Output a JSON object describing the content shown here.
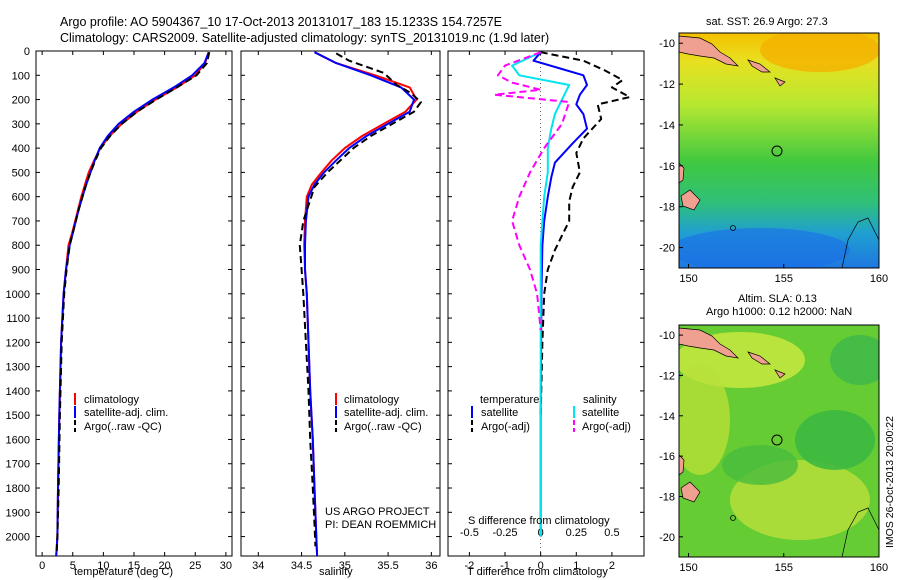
{
  "title_line1": "Argo profile: AO 5904367_10 17-Oct-2013 20131017_183 15.1233S 154.7257E",
  "title_line2": "Climatology: CARS2009. Satellite-adjusted climatology: synTS_20131019.nc (1.9d later)",
  "side_label": "IMOS 26-Oct-2013 20:00:22",
  "colors": {
    "climatology": "#ff0000",
    "satellite": "#0000ff",
    "argo": "#000000",
    "sal_satellite": "#00e5ee",
    "sal_argo": "#ff00ff"
  },
  "chart_data": [
    {
      "type": "line",
      "xlabel": "temperature (deg C)",
      "ylabel": "",
      "xlim": [
        -1,
        31
      ],
      "xticks": [
        0,
        5,
        10,
        15,
        20,
        25,
        30
      ],
      "ylim": [
        2080,
        0
      ],
      "yticks": [
        0,
        100,
        200,
        300,
        400,
        500,
        600,
        700,
        800,
        900,
        1000,
        1100,
        1200,
        1300,
        1400,
        1500,
        1600,
        1700,
        1800,
        1900,
        2000
      ],
      "legend": [
        "climatology",
        "satellite-adj. clim.",
        "Argo(..raw -QC)"
      ],
      "legend_placement": "lower-right",
      "series": [
        {
          "name": "climatology",
          "style": "solid",
          "x": [
            27.2,
            26.6,
            25.0,
            22.0,
            18.5,
            15.5,
            13.0,
            11.0,
            9.5,
            8.5,
            7.6,
            7.0,
            6.4,
            5.9,
            5.4,
            4.9,
            4.3,
            3.9,
            3.5,
            3.1,
            2.8,
            2.6,
            2.5,
            2.3
          ],
          "y": [
            5,
            50,
            100,
            150,
            200,
            250,
            300,
            350,
            400,
            450,
            500,
            550,
            600,
            650,
            700,
            750,
            800,
            900,
            1000,
            1200,
            1500,
            1800,
            2000,
            2080
          ]
        },
        {
          "name": "satellite-adj. clim.",
          "style": "solid",
          "x": [
            27.2,
            26.5,
            24.5,
            21.5,
            18.0,
            15.0,
            12.5,
            10.7,
            9.4,
            8.6,
            7.9,
            7.2,
            6.6,
            6.0,
            5.5,
            5.0,
            4.5,
            3.9,
            3.5,
            3.1,
            2.8,
            2.6,
            2.5,
            2.3
          ],
          "y": [
            5,
            50,
            100,
            150,
            200,
            250,
            300,
            350,
            400,
            450,
            500,
            550,
            600,
            650,
            700,
            750,
            800,
            900,
            1000,
            1200,
            1500,
            1800,
            2000,
            2080
          ]
        },
        {
          "name": "Argo(..raw -QC)",
          "style": "dashed",
          "x": [
            27.3,
            26.9,
            25.2,
            22.0,
            18.6,
            15.5,
            13.0,
            11.1,
            9.6,
            8.7,
            7.9,
            7.2,
            6.6,
            6.0,
            5.5,
            5.0,
            4.5,
            4.0,
            3.6,
            3.2,
            2.9,
            2.7,
            2.5,
            2.4
          ],
          "y": [
            5,
            50,
            100,
            150,
            200,
            250,
            300,
            350,
            400,
            450,
            500,
            550,
            600,
            650,
            700,
            750,
            800,
            900,
            1000,
            1200,
            1500,
            1800,
            2000,
            2060
          ]
        }
      ]
    },
    {
      "type": "line",
      "xlabel": "salinity",
      "ylabel": "",
      "xlim": [
        33.8,
        36.1
      ],
      "xticks": [
        34,
        34.5,
        35,
        35.5,
        36
      ],
      "ylim": [
        2080,
        0
      ],
      "legend": [
        "climatology",
        "satellite-adj. clim.",
        "Argo(..raw -QC)"
      ],
      "legend_placement": "lower-right",
      "annotations": [
        "US ARGO PROJECT",
        "PI: DEAN ROEMMICH"
      ],
      "series": [
        {
          "name": "climatology",
          "style": "solid",
          "x": [
            34.65,
            34.9,
            35.35,
            35.75,
            35.83,
            35.7,
            35.45,
            35.2,
            35.0,
            34.85,
            34.73,
            34.62,
            34.56,
            34.54,
            34.53,
            34.54,
            34.56,
            34.58,
            34.6,
            34.63,
            34.65,
            34.67,
            34.68
          ],
          "y": [
            5,
            50,
            100,
            150,
            200,
            250,
            300,
            350,
            400,
            450,
            500,
            550,
            600,
            700,
            800,
            900,
            1000,
            1200,
            1400,
            1600,
            1800,
            2000,
            2080
          ]
        },
        {
          "name": "satellite-adj. clim.",
          "style": "solid",
          "x": [
            34.65,
            34.9,
            35.3,
            35.65,
            35.8,
            35.75,
            35.5,
            35.25,
            35.05,
            34.9,
            34.76,
            34.65,
            34.58,
            34.55,
            34.54,
            34.54,
            34.56,
            34.58,
            34.6,
            34.63,
            34.65,
            34.67,
            34.68
          ],
          "y": [
            5,
            50,
            100,
            150,
            200,
            250,
            300,
            350,
            400,
            450,
            500,
            550,
            600,
            700,
            800,
            900,
            1000,
            1200,
            1400,
            1600,
            1800,
            2000,
            2080
          ]
        },
        {
          "name": "Argo(..raw -QC)",
          "style": "dashed",
          "x": [
            34.9,
            35.05,
            35.45,
            35.6,
            35.75,
            35.88,
            35.8,
            35.55,
            35.3,
            35.1,
            34.95,
            34.8,
            34.65,
            34.52,
            34.48,
            34.5,
            34.52,
            34.55,
            34.58,
            34.6,
            34.63,
            34.65,
            34.66
          ],
          "y": [
            10,
            40,
            90,
            140,
            170,
            210,
            250,
            300,
            350,
            400,
            450,
            500,
            560,
            700,
            800,
            900,
            1000,
            1200,
            1400,
            1600,
            1800,
            1950,
            2040
          ]
        }
      ]
    },
    {
      "type": "line",
      "xlabel": "T difference from climatology",
      "xlabel_top": "S difference from climatology",
      "xlim": [
        -2.6,
        2.9
      ],
      "xticks": [
        -2,
        -1,
        0,
        1,
        2
      ],
      "top_ticks": [
        {
          "text": "-0.5",
          "t": -2
        },
        {
          "text": "-0.25",
          "t": -1
        },
        {
          "text": "0",
          "t": 0
        },
        {
          "text": "0.25",
          "t": 1
        },
        {
          "text": "0.5",
          "t": 2
        }
      ],
      "ylim": [
        2080,
        0
      ],
      "legend_groups": [
        "temperature",
        "salinity"
      ],
      "legend": [
        "satellite",
        "Argo(-adj)",
        "satellite",
        "Argo(-adj)"
      ],
      "legend_placement": "lower-center",
      "series": [
        {
          "name": "satellite",
          "group": "temperature",
          "style": "solid",
          "x": [
            0,
            -0.2,
            0.5,
            1.2,
            1.3,
            1.1,
            1.0,
            1.2,
            1.3,
            0.9,
            0.4,
            0.3,
            0.2,
            0.1,
            0.05,
            0.02,
            0,
            0
          ],
          "y": [
            5,
            40,
            70,
            100,
            140,
            180,
            220,
            260,
            320,
            380,
            460,
            520,
            600,
            700,
            800,
            1000,
            1500,
            2000
          ]
        },
        {
          "name": "Argo(-adj)",
          "group": "temperature",
          "style": "dashed",
          "x": [
            0,
            1.2,
            1.8,
            2.3,
            2.0,
            2.5,
            1.6,
            1.7,
            1.2,
            1.0,
            1.1,
            0.9,
            0.8,
            0.8,
            0.6,
            0.4,
            0.2,
            0.1,
            0.05,
            0
          ],
          "y": [
            5,
            40,
            80,
            120,
            150,
            190,
            220,
            280,
            360,
            420,
            500,
            560,
            620,
            700,
            760,
            820,
            900,
            1000,
            1200,
            1500
          ]
        },
        {
          "name": "satellite",
          "group": "salinity",
          "style": "solid",
          "x": [
            0,
            -0.8,
            -0.6,
            0.8,
            0.6,
            0.4,
            0.3,
            0.2,
            0.2,
            0.1,
            0.05,
            0,
            0,
            0
          ],
          "y": [
            5,
            60,
            100,
            140,
            200,
            260,
            320,
            400,
            500,
            600,
            700,
            800,
            1200,
            2000
          ]
        },
        {
          "name": "Argo(-adj)",
          "group": "salinity",
          "style": "dashed",
          "x": [
            0,
            -1.0,
            -1.2,
            -0.8,
            0,
            -1.3,
            0.8,
            0.6,
            0.1,
            -0.3,
            -0.6,
            -0.8,
            -0.6,
            -0.3,
            -0.1,
            0
          ],
          "y": [
            5,
            60,
            100,
            130,
            160,
            180,
            210,
            300,
            400,
            500,
            600,
            700,
            800,
            900,
            1000,
            1150
          ]
        }
      ]
    },
    {
      "type": "heatmap",
      "title": "sat. SST: 26.9 Argo: 27.3",
      "xlim": [
        149.5,
        160
      ],
      "ylim": [
        -21,
        -9.5
      ],
      "xticks": [
        150,
        155,
        160
      ],
      "yticks": [
        -10,
        -12,
        -14,
        -16,
        -18,
        -20
      ],
      "profile_location": [
        154.73,
        -15.12
      ]
    },
    {
      "type": "heatmap",
      "title_line1": "Altim. SLA: 0.13",
      "title_line2": "Argo h1000: 0.12 h2000: NaN",
      "xlim": [
        149.5,
        160
      ],
      "ylim": [
        -21,
        -9.5
      ],
      "xticks": [
        150,
        155,
        160
      ],
      "yticks": [
        -10,
        -12,
        -14,
        -16,
        -18,
        -20
      ],
      "profile_location": [
        154.73,
        -15.12
      ]
    }
  ]
}
